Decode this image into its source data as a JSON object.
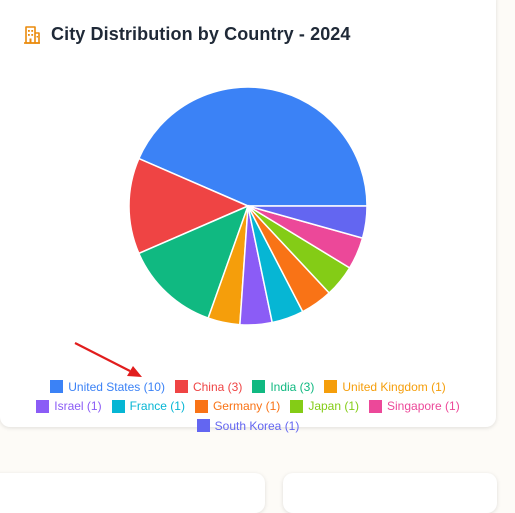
{
  "card": {
    "title": "City Distribution by Country - 2024"
  },
  "chart_data": {
    "type": "pie",
    "title": "City Distribution by Country - 2024",
    "legend_position": "bottom",
    "slices": [
      {
        "label": "United States",
        "value": 10,
        "color": "#3b82f6",
        "legend_text": "United States (10)"
      },
      {
        "label": "China",
        "value": 3,
        "color": "#ef4444",
        "legend_text": "China (3)"
      },
      {
        "label": "India",
        "value": 3,
        "color": "#10b981",
        "legend_text": "India (3)"
      },
      {
        "label": "United Kingdom",
        "value": 1,
        "color": "#f59e0b",
        "legend_text": "United Kingdom (1)"
      },
      {
        "label": "Israel",
        "value": 1,
        "color": "#8b5cf6",
        "legend_text": "Israel (1)"
      },
      {
        "label": "France",
        "value": 1,
        "color": "#06b6d4",
        "legend_text": "France (1)"
      },
      {
        "label": "Germany",
        "value": 1,
        "color": "#f97316",
        "legend_text": "Germany (1)"
      },
      {
        "label": "Japan",
        "value": 1,
        "color": "#84cc16",
        "legend_text": "Japan (1)"
      },
      {
        "label": "Singapore",
        "value": 1,
        "color": "#ec4899",
        "legend_text": "Singapore (1)"
      },
      {
        "label": "South Korea",
        "value": 1,
        "color": "#6366f1",
        "legend_text": "South Korea (1)"
      }
    ]
  },
  "colors": {
    "title_icon": "#ea8a0c",
    "annotation_arrow": "#e11d1d"
  }
}
